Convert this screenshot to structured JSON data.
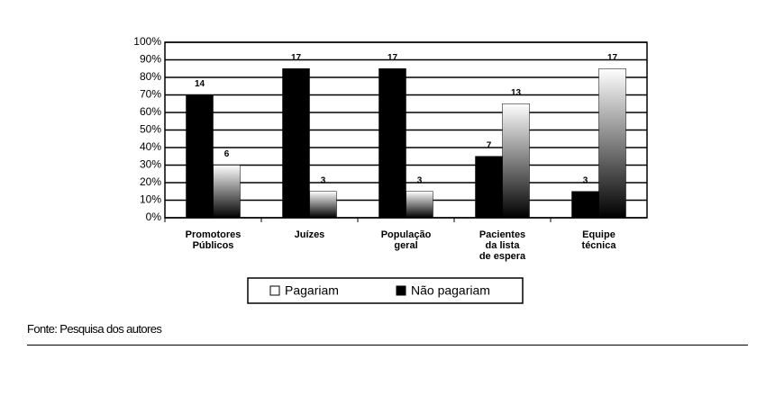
{
  "chart_data": {
    "type": "bar",
    "categories": [
      [
        "Promotores",
        "Públicos"
      ],
      [
        "Juízes"
      ],
      [
        "População",
        "geral"
      ],
      [
        "Pacientes",
        "da lista",
        "de espera"
      ],
      [
        "Equipe",
        "técnica"
      ]
    ],
    "series": [
      {
        "name": "Pagariam",
        "color": "gradient",
        "values": [
          30,
          15,
          15,
          65,
          85
        ],
        "counts": [
          6,
          3,
          3,
          13,
          17
        ]
      },
      {
        "name": "Não pagariam",
        "color": "#000000",
        "values": [
          70,
          85,
          85,
          35,
          15
        ],
        "counts": [
          14,
          17,
          17,
          7,
          3
        ]
      }
    ],
    "ylim": [
      0,
      100
    ],
    "yticks": [
      {
        "value": 0,
        "label": "0%"
      },
      {
        "value": 10,
        "label": "10%"
      },
      {
        "value": 20,
        "label": "20%"
      },
      {
        "value": 30,
        "label": "30%"
      },
      {
        "value": 40,
        "label": "40%"
      },
      {
        "value": 50,
        "label": "50%"
      },
      {
        "value": 60,
        "label": "60%"
      },
      {
        "value": 70,
        "label": "70%"
      },
      {
        "value": 80,
        "label": "80%"
      },
      {
        "value": 90,
        "label": "90%"
      },
      {
        "value": 100,
        "label": "100%"
      }
    ],
    "grid": true
  },
  "source": "Fonte: Pesquisa dos autores"
}
